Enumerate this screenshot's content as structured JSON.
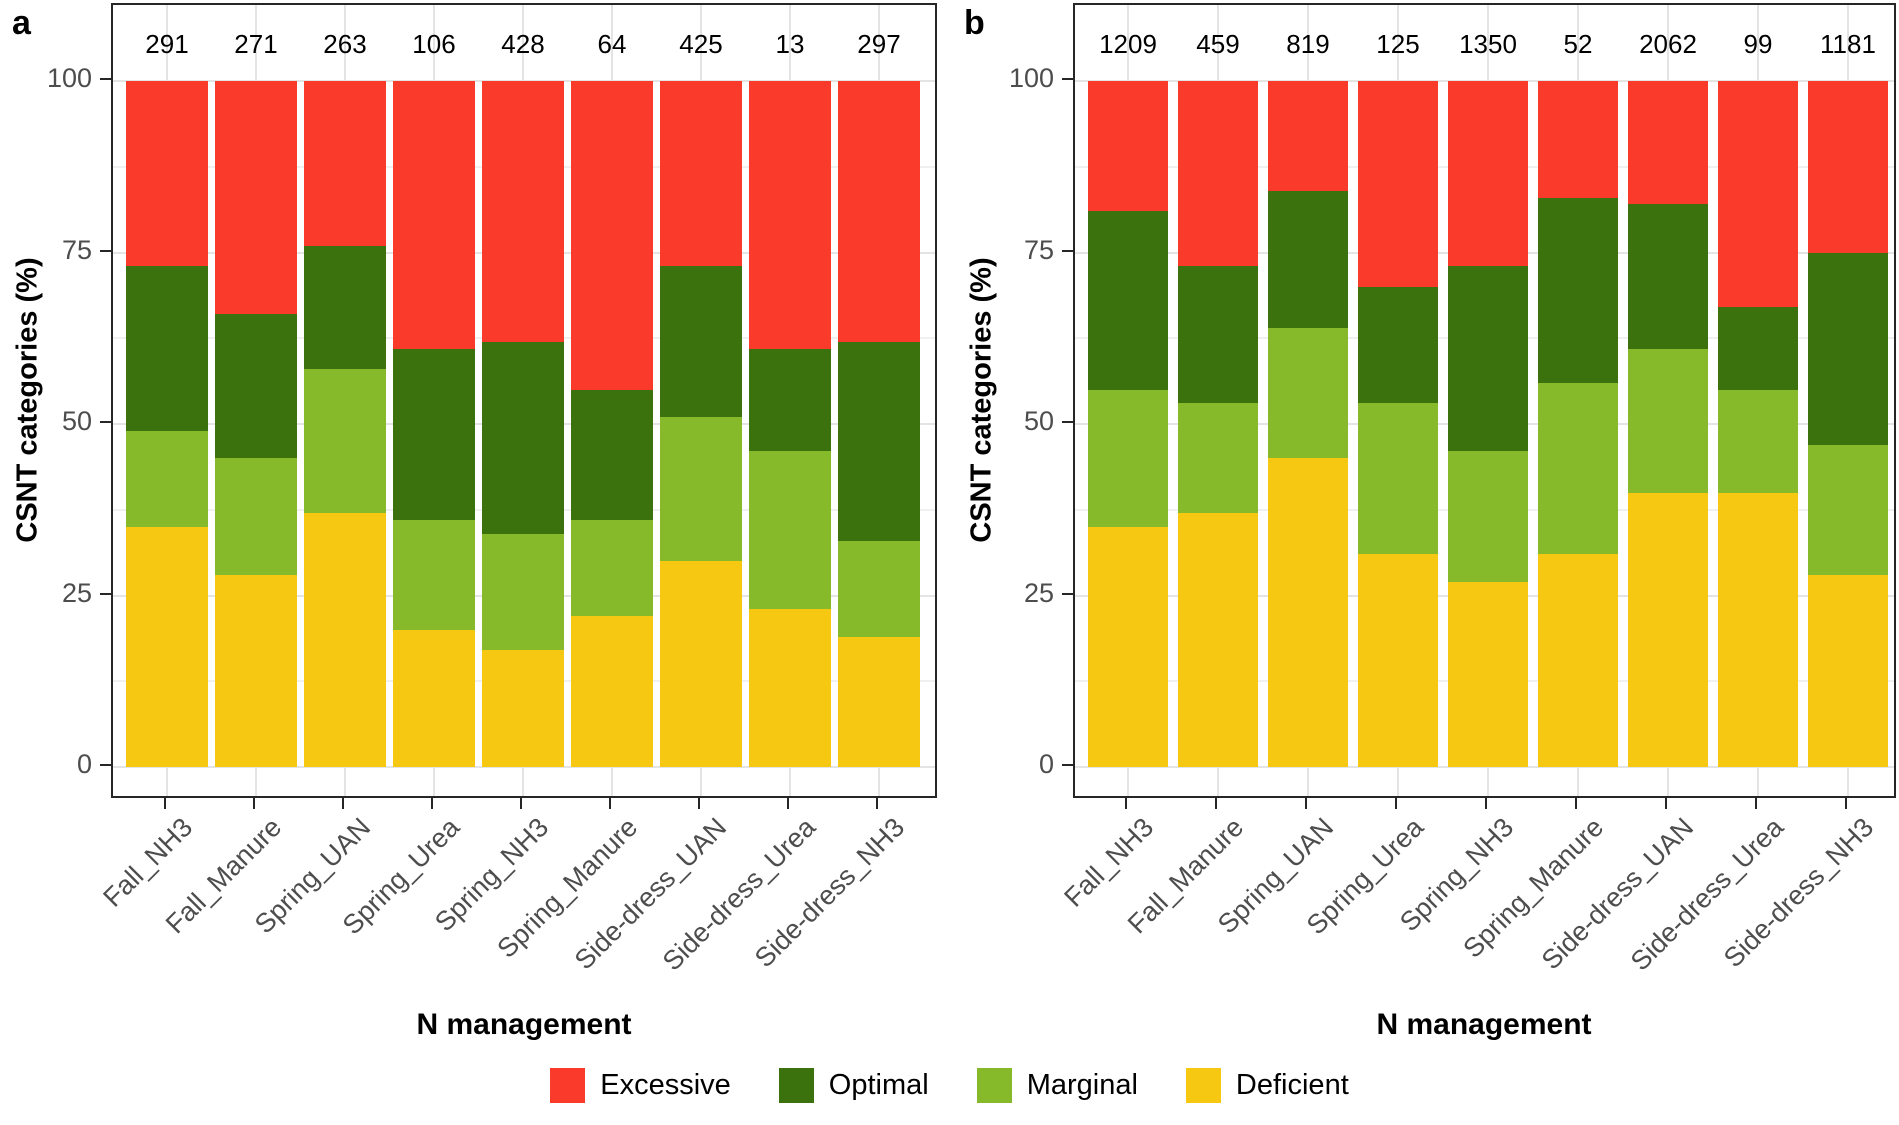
{
  "figure": {
    "panel_a_label": "a",
    "panel_b_label": "b",
    "y_axis_title": "CSNT categories (%)",
    "x_axis_title": "N management",
    "y_tick_labels": [
      "100",
      "75",
      "50",
      "25",
      "0"
    ]
  },
  "legend": {
    "items": [
      {
        "label": "Excessive",
        "color": "#fa3b2c"
      },
      {
        "label": "Optimal",
        "color": "#3b720e"
      },
      {
        "label": "Marginal",
        "color": "#87ba2b"
      },
      {
        "label": "Deficient",
        "color": "#f7c812"
      }
    ]
  },
  "colors": {
    "excessive": "#fa3b2c",
    "optimal": "#3b720e",
    "marginal": "#87ba2b",
    "deficient": "#f7c812",
    "gridline_major": "#e4e4e4",
    "gridline_minor": "#f0f0f0",
    "axis_text": "#4d4d4d",
    "axis_line": "#262626"
  },
  "chart_data": [
    {
      "type": "bar",
      "stacked": true,
      "panel": "a",
      "categories": [
        "Fall_NH3",
        "Fall_Manure",
        "Spring_UAN",
        "Spring_Urea",
        "Spring_NH3",
        "Spring_Manure",
        "Side-dress_UAN",
        "Side-dress_Urea",
        "Side-dress_NH3"
      ],
      "bar_counts": [
        "291",
        "271",
        "263",
        "106",
        "428",
        "64",
        "425",
        "13",
        "297"
      ],
      "series": [
        {
          "name": "Deficient",
          "color": "#f7c812",
          "values": [
            35,
            28,
            37,
            20,
            17,
            22,
            30,
            23,
            19
          ]
        },
        {
          "name": "Marginal",
          "color": "#87ba2b",
          "values": [
            14,
            17,
            21,
            16,
            17,
            14,
            21,
            23,
            14
          ]
        },
        {
          "name": "Optimal",
          "color": "#3b720e",
          "values": [
            24,
            21,
            18,
            25,
            28,
            19,
            22,
            15,
            29
          ]
        },
        {
          "name": "Excessive",
          "color": "#fa3b2c",
          "values": [
            27,
            34,
            24,
            39,
            38,
            45,
            27,
            39,
            38
          ]
        }
      ],
      "xlabel": "N management",
      "ylabel": "CSNT categories (%)",
      "ylim": [
        0,
        100
      ],
      "y_ticks": [
        0,
        25,
        50,
        75,
        100
      ],
      "grid": true,
      "legend_position": "bottom"
    },
    {
      "type": "bar",
      "stacked": true,
      "panel": "b",
      "categories": [
        "Fall_NH3",
        "Fall_Manure",
        "Spring_UAN",
        "Spring_Urea",
        "Spring_NH3",
        "Spring_Manure",
        "Side-dress_UAN",
        "Side-dress_Urea",
        "Side-dress_NH3"
      ],
      "bar_counts": [
        "1209",
        "459",
        "819",
        "125",
        "1350",
        "52",
        "2062",
        "99",
        "1181"
      ],
      "series": [
        {
          "name": "Deficient",
          "color": "#f7c812",
          "values": [
            35,
            37,
            45,
            31,
            27,
            31,
            40,
            40,
            28
          ]
        },
        {
          "name": "Marginal",
          "color": "#87ba2b",
          "values": [
            20,
            16,
            19,
            22,
            19,
            25,
            21,
            15,
            19
          ]
        },
        {
          "name": "Optimal",
          "color": "#3b720e",
          "values": [
            26,
            20,
            20,
            17,
            27,
            27,
            21,
            12,
            28
          ]
        },
        {
          "name": "Excessive",
          "color": "#fa3b2c",
          "values": [
            19,
            27,
            16,
            30,
            27,
            17,
            18,
            33,
            25
          ]
        }
      ],
      "xlabel": "N management",
      "ylabel": "CSNT categories (%)",
      "ylim": [
        0,
        100
      ],
      "y_ticks": [
        0,
        25,
        50,
        75,
        100
      ],
      "grid": true,
      "legend_position": "bottom"
    }
  ]
}
